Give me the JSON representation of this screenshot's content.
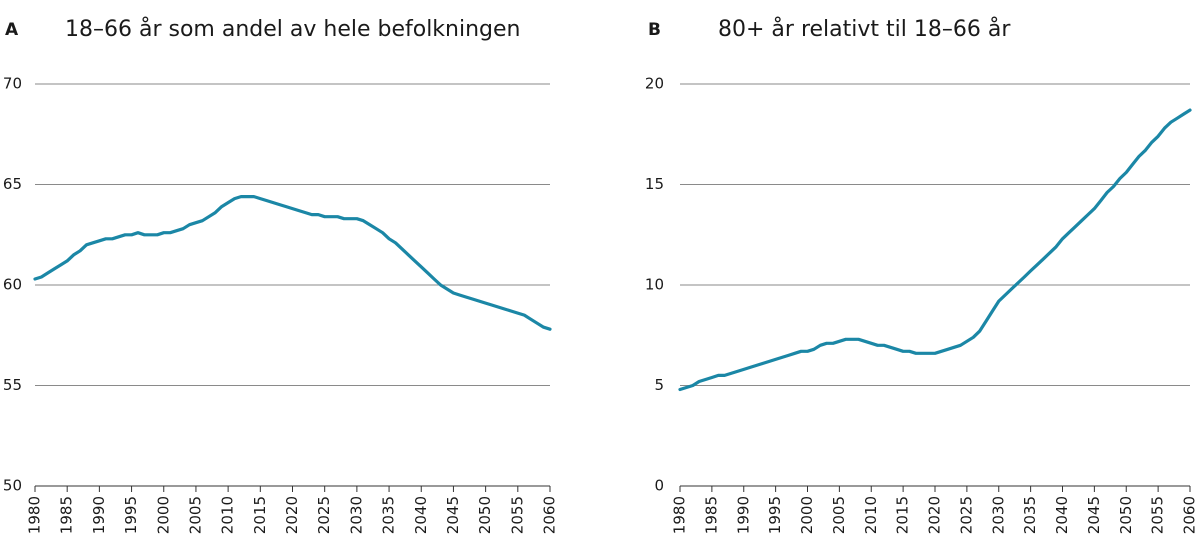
{
  "chart_data": [
    {
      "type": "line",
      "label": "A",
      "title": "18–66 år som andel av hele befolkningen",
      "x": [
        1980,
        1981,
        1982,
        1983,
        1984,
        1985,
        1986,
        1987,
        1988,
        1989,
        1990,
        1991,
        1992,
        1993,
        1994,
        1995,
        1996,
        1997,
        1998,
        1999,
        2000,
        2001,
        2002,
        2003,
        2004,
        2005,
        2006,
        2007,
        2008,
        2009,
        2010,
        2011,
        2012,
        2013,
        2014,
        2015,
        2016,
        2017,
        2018,
        2019,
        2020,
        2021,
        2022,
        2023,
        2024,
        2025,
        2026,
        2027,
        2028,
        2029,
        2030,
        2031,
        2032,
        2033,
        2034,
        2035,
        2036,
        2037,
        2038,
        2039,
        2040,
        2041,
        2042,
        2043,
        2044,
        2045,
        2046,
        2047,
        2048,
        2049,
        2050,
        2051,
        2052,
        2053,
        2054,
        2055,
        2056,
        2057,
        2058,
        2059,
        2060
      ],
      "values": [
        60.3,
        60.4,
        60.6,
        60.8,
        61.0,
        61.2,
        61.5,
        61.7,
        62.0,
        62.1,
        62.2,
        62.3,
        62.3,
        62.4,
        62.5,
        62.5,
        62.6,
        62.5,
        62.5,
        62.5,
        62.6,
        62.6,
        62.7,
        62.8,
        63.0,
        63.1,
        63.2,
        63.4,
        63.6,
        63.9,
        64.1,
        64.3,
        64.4,
        64.4,
        64.4,
        64.3,
        64.2,
        64.1,
        64.0,
        63.9,
        63.8,
        63.7,
        63.6,
        63.5,
        63.5,
        63.4,
        63.4,
        63.4,
        63.3,
        63.3,
        63.3,
        63.2,
        63.0,
        62.8,
        62.6,
        62.3,
        62.1,
        61.8,
        61.5,
        61.2,
        60.9,
        60.6,
        60.3,
        60.0,
        59.8,
        59.6,
        59.5,
        59.4,
        59.3,
        59.2,
        59.1,
        59.0,
        58.9,
        58.8,
        58.7,
        58.6,
        58.5,
        58.3,
        58.1,
        57.9,
        57.8
      ],
      "color": "#1b87a6",
      "xlim": [
        1980,
        2060
      ],
      "xticks": [
        1980,
        1985,
        1990,
        1995,
        2000,
        2005,
        2010,
        2015,
        2020,
        2025,
        2030,
        2035,
        2040,
        2045,
        2050,
        2055,
        2060
      ],
      "ylim": [
        50,
        70
      ],
      "yticks": [
        50,
        55,
        60,
        65,
        70
      ],
      "grid": true
    },
    {
      "type": "line",
      "label": "B",
      "title": "80+ år relativt til 18–66 år",
      "x": [
        1980,
        1981,
        1982,
        1983,
        1984,
        1985,
        1986,
        1987,
        1988,
        1989,
        1990,
        1991,
        1992,
        1993,
        1994,
        1995,
        1996,
        1997,
        1998,
        1999,
        2000,
        2001,
        2002,
        2003,
        2004,
        2005,
        2006,
        2007,
        2008,
        2009,
        2010,
        2011,
        2012,
        2013,
        2014,
        2015,
        2016,
        2017,
        2018,
        2019,
        2020,
        2021,
        2022,
        2023,
        2024,
        2025,
        2026,
        2027,
        2028,
        2029,
        2030,
        2031,
        2032,
        2033,
        2034,
        2035,
        2036,
        2037,
        2038,
        2039,
        2040,
        2041,
        2042,
        2043,
        2044,
        2045,
        2046,
        2047,
        2048,
        2049,
        2050,
        2051,
        2052,
        2053,
        2054,
        2055,
        2056,
        2057,
        2058,
        2059,
        2060
      ],
      "values": [
        4.8,
        4.9,
        5.0,
        5.2,
        5.3,
        5.4,
        5.5,
        5.5,
        5.6,
        5.7,
        5.8,
        5.9,
        6.0,
        6.1,
        6.2,
        6.3,
        6.4,
        6.5,
        6.6,
        6.7,
        6.7,
        6.8,
        7.0,
        7.1,
        7.1,
        7.2,
        7.3,
        7.3,
        7.3,
        7.2,
        7.1,
        7.0,
        7.0,
        6.9,
        6.8,
        6.7,
        6.7,
        6.6,
        6.6,
        6.6,
        6.6,
        6.7,
        6.8,
        6.9,
        7.0,
        7.2,
        7.4,
        7.7,
        8.2,
        8.7,
        9.2,
        9.5,
        9.8,
        10.1,
        10.4,
        10.7,
        11.0,
        11.3,
        11.6,
        11.9,
        12.3,
        12.6,
        12.9,
        13.2,
        13.5,
        13.8,
        14.2,
        14.6,
        14.9,
        15.3,
        15.6,
        16.0,
        16.4,
        16.7,
        17.1,
        17.4,
        17.8,
        18.1,
        18.3,
        18.5,
        18.7
      ],
      "color": "#1b87a6",
      "xlim": [
        1980,
        2060
      ],
      "xticks": [
        1980,
        1985,
        1990,
        1995,
        2000,
        2005,
        2010,
        2015,
        2020,
        2025,
        2030,
        2035,
        2040,
        2045,
        2050,
        2055,
        2060
      ],
      "ylim": [
        0,
        20
      ],
      "yticks": [
        0,
        5,
        10,
        15,
        20
      ],
      "grid": true
    }
  ]
}
